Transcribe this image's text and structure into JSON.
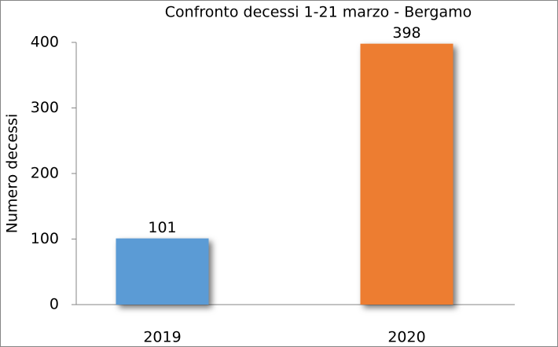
{
  "chart_data": {
    "type": "bar",
    "title": "Confronto decessi 1-21 marzo - Bergamo",
    "y_label": "Numero decessi",
    "categories": [
      "2019",
      "2020"
    ],
    "values": [
      101,
      398
    ],
    "colors": [
      "#5b9bd5",
      "#ed7d31"
    ],
    "ylim": [
      0,
      400
    ],
    "yticks": [
      0,
      100,
      200,
      300,
      400
    ],
    "grid": false
  }
}
